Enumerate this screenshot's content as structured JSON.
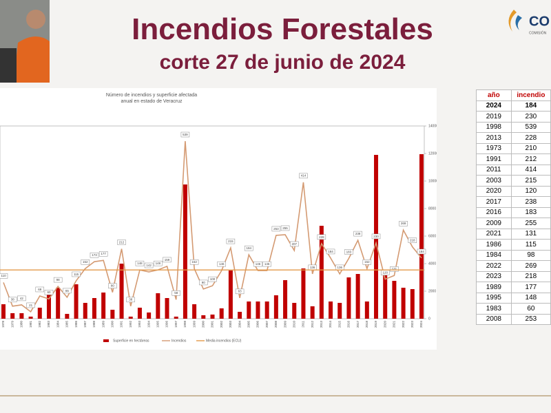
{
  "header": {
    "title": "Incendios Forestales",
    "subtitle": "corte 27 de junio de 2024",
    "logo": "CO",
    "logo_sub": "COMISIÓN"
  },
  "chart_data": {
    "type": "bar-line",
    "title": [
      "Número de incendios y superficie afectada",
      "anual en estado de Veracruz"
    ],
    "categories": [
      "1978",
      "1979",
      "1980",
      "1981",
      "1982",
      "1983",
      "1984",
      "1985",
      "1986",
      "1987",
      "1988",
      "1989",
      "1990",
      "1991",
      "1992",
      "1993",
      "1994",
      "1995",
      "1996",
      "1997",
      "1998",
      "1999",
      "2000",
      "2001",
      "2002",
      "2003",
      "2004",
      "2005",
      "2006",
      "2007",
      "2008",
      "2009",
      "2010",
      "2011",
      "2012",
      "2013",
      "2014",
      "2015",
      "2016",
      "2017",
      "2018",
      "2019",
      "2020",
      "2021",
      "2022",
      "2023",
      "2024"
    ],
    "series": [
      {
        "name": "Superficie en hectáreas",
        "color": "#c00000",
        "values": [
          1050,
          400,
          400,
          150,
          800,
          1750,
          2250,
          350,
          2500,
          1150,
          1500,
          1900,
          650,
          4000,
          150,
          800,
          450,
          1850,
          1500,
          150,
          9750,
          1050,
          250,
          300,
          750,
          3500,
          500,
          1250,
          1250,
          1250,
          1700,
          2800,
          1150,
          3650,
          900,
          6750,
          1250,
          1150,
          3000,
          3250,
          1250,
          11900,
          3150,
          2750,
          2250,
          2150,
          11950
        ]
      },
      {
        "name": "Incendios",
        "color": "#d49a72",
        "axis": "y2",
        "values": [
          110,
          38,
          42,
          21,
          69,
          60,
          98,
          65,
          115,
          152,
          173,
          177,
          80,
          212,
          38,
          148,
          142,
          148,
          159,
          58,
          539,
          152,
          90,
          100,
          146,
          215,
          63,
          194,
          146,
          146,
          253,
          255,
          207,
          414,
          136,
          228,
          184,
          136,
          183,
          238,
          152,
          230,
          120,
          131,
          269,
          218,
          184
        ]
      }
    ],
    "mean_line": {
      "name": "Media incendios (ECU)",
      "color": "#e39a4a",
      "value": 148
    },
    "ylim": [
      0,
      14000
    ],
    "yticks": [
      0,
      2000,
      4000,
      6000,
      8000,
      10000,
      12000,
      14000
    ],
    "y2lim": [
      0,
      585
    ]
  },
  "table": {
    "header": [
      "año",
      "incendio"
    ],
    "rows": [
      [
        "2024",
        "184"
      ],
      [
        "2019",
        "230"
      ],
      [
        "1998",
        "539"
      ],
      [
        "2013",
        "228"
      ],
      [
        "1973",
        "210"
      ],
      [
        "1991",
        "212"
      ],
      [
        "2011",
        "414"
      ],
      [
        "2003",
        "215"
      ],
      [
        "2020",
        "120"
      ],
      [
        "2017",
        "238"
      ],
      [
        "2016",
        "183"
      ],
      [
        "2009",
        "255"
      ],
      [
        "2021",
        "131"
      ],
      [
        "1986",
        "115"
      ],
      [
        "1984",
        "98"
      ],
      [
        "2022",
        "269"
      ],
      [
        "2023",
        "218"
      ],
      [
        "1989",
        "177"
      ],
      [
        "1995",
        "148"
      ],
      [
        "1983",
        "60"
      ],
      [
        "2008",
        "253"
      ]
    ]
  }
}
